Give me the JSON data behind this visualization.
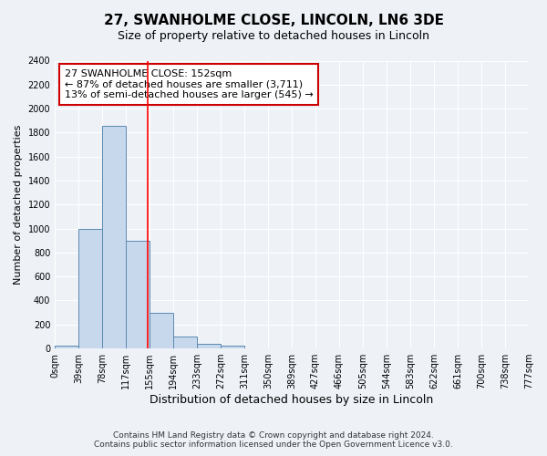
{
  "title": "27, SWANHOLME CLOSE, LINCOLN, LN6 3DE",
  "subtitle": "Size of property relative to detached houses in Lincoln",
  "xlabel": "Distribution of detached houses by size in Lincoln",
  "ylabel": "Number of detached properties",
  "bar_edges": [
    0,
    39,
    78,
    117,
    155,
    194,
    233,
    272,
    311,
    350,
    389,
    427,
    466,
    505,
    544,
    583,
    622,
    661,
    700,
    738,
    777
  ],
  "bar_heights": [
    20,
    1000,
    1860,
    900,
    300,
    100,
    40,
    20,
    0,
    0,
    0,
    0,
    0,
    0,
    0,
    0,
    0,
    0,
    0,
    0
  ],
  "tick_labels": [
    "0sqm",
    "39sqm",
    "78sqm",
    "117sqm",
    "155sqm",
    "194sqm",
    "233sqm",
    "272sqm",
    "311sqm",
    "350sqm",
    "389sqm",
    "427sqm",
    "466sqm",
    "505sqm",
    "544sqm",
    "583sqm",
    "622sqm",
    "661sqm",
    "700sqm",
    "738sqm",
    "777sqm"
  ],
  "bar_color": "#c8d8ec",
  "bar_edge_color": "#5a8ab0",
  "red_line_x": 152,
  "annotation_line1": "27 SWANHOLME CLOSE: 152sqm",
  "annotation_line2": "← 87% of detached houses are smaller (3,711)",
  "annotation_line3": "13% of semi-detached houses are larger (545) →",
  "annotation_fontsize": 8,
  "title_fontsize": 11,
  "subtitle_fontsize": 9,
  "xlabel_fontsize": 9,
  "ylabel_fontsize": 8,
  "tick_fontsize": 7,
  "ylim": [
    0,
    2400
  ],
  "yticks": [
    0,
    200,
    400,
    600,
    800,
    1000,
    1200,
    1400,
    1600,
    1800,
    2000,
    2200,
    2400
  ],
  "footer_line1": "Contains HM Land Registry data © Crown copyright and database right 2024.",
  "footer_line2": "Contains public sector information licensed under the Open Government Licence v3.0.",
  "background_color": "#eef2f7",
  "plot_background": "#eef2f7",
  "grid_color": "#ffffff"
}
